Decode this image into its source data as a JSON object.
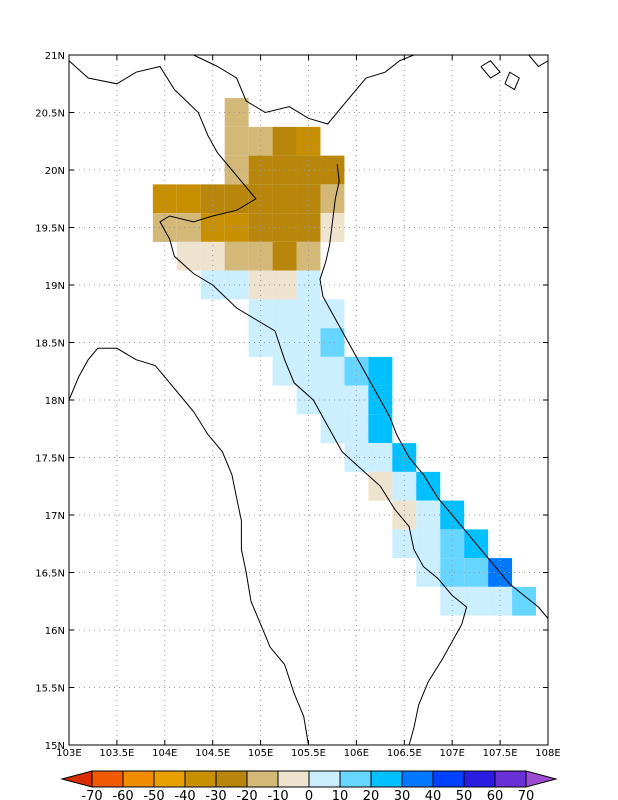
{
  "map": {
    "lon_range": [
      103,
      108
    ],
    "lat_range": [
      15,
      21
    ],
    "lon_labels": [
      "103E",
      "103.5E",
      "104E",
      "104.5E",
      "105E",
      "105.5E",
      "106E",
      "106.5E",
      "107E",
      "107.5E",
      "108E"
    ],
    "lat_labels": [
      "21N",
      "20.5N",
      "20N",
      "19.5N",
      "19N",
      "18.5N",
      "18N",
      "17.5N",
      "17N",
      "16.5N",
      "16N",
      "15.5N",
      "15N"
    ],
    "grid": "dotted",
    "cell_size_deg": 0.25,
    "cells": [
      {
        "lon": 104.75,
        "lat": 20.5,
        "bin": 6
      },
      {
        "lon": 104.75,
        "lat": 20.25,
        "bin": 6
      },
      {
        "lon": 105.0,
        "lat": 20.25,
        "bin": 6
      },
      {
        "lon": 105.25,
        "lat": 20.25,
        "bin": 5
      },
      {
        "lon": 105.5,
        "lat": 20.25,
        "bin": 4
      },
      {
        "lon": 104.75,
        "lat": 20.0,
        "bin": 6
      },
      {
        "lon": 105.0,
        "lat": 20.0,
        "bin": 5
      },
      {
        "lon": 105.25,
        "lat": 20.0,
        "bin": 5
      },
      {
        "lon": 105.5,
        "lat": 20.0,
        "bin": 5
      },
      {
        "lon": 105.75,
        "lat": 20.0,
        "bin": 5
      },
      {
        "lon": 104.0,
        "lat": 19.75,
        "bin": 4
      },
      {
        "lon": 104.25,
        "lat": 19.75,
        "bin": 4
      },
      {
        "lon": 104.5,
        "lat": 19.75,
        "bin": 5
      },
      {
        "lon": 104.75,
        "lat": 19.75,
        "bin": 5
      },
      {
        "lon": 105.0,
        "lat": 19.75,
        "bin": 5
      },
      {
        "lon": 105.25,
        "lat": 19.75,
        "bin": 5
      },
      {
        "lon": 105.5,
        "lat": 19.75,
        "bin": 5
      },
      {
        "lon": 105.75,
        "lat": 19.75,
        "bin": 6
      },
      {
        "lon": 104.0,
        "lat": 19.5,
        "bin": 6
      },
      {
        "lon": 104.25,
        "lat": 19.5,
        "bin": 6
      },
      {
        "lon": 104.5,
        "lat": 19.5,
        "bin": 4
      },
      {
        "lon": 104.75,
        "lat": 19.5,
        "bin": 4
      },
      {
        "lon": 105.0,
        "lat": 19.5,
        "bin": 5
      },
      {
        "lon": 105.25,
        "lat": 19.5,
        "bin": 5
      },
      {
        "lon": 105.5,
        "lat": 19.5,
        "bin": 5
      },
      {
        "lon": 105.75,
        "lat": 19.5,
        "bin": 7
      },
      {
        "lon": 104.25,
        "lat": 19.25,
        "bin": 7
      },
      {
        "lon": 104.5,
        "lat": 19.25,
        "bin": 7
      },
      {
        "lon": 104.75,
        "lat": 19.25,
        "bin": 6
      },
      {
        "lon": 105.0,
        "lat": 19.25,
        "bin": 6
      },
      {
        "lon": 105.25,
        "lat": 19.25,
        "bin": 5
      },
      {
        "lon": 105.5,
        "lat": 19.25,
        "bin": 6
      },
      {
        "lon": 104.5,
        "lat": 19.0,
        "bin": 8
      },
      {
        "lon": 104.75,
        "lat": 19.0,
        "bin": 8
      },
      {
        "lon": 105.0,
        "lat": 19.0,
        "bin": 7
      },
      {
        "lon": 105.25,
        "lat": 19.0,
        "bin": 7
      },
      {
        "lon": 105.5,
        "lat": 19.0,
        "bin": 8
      },
      {
        "lon": 105.0,
        "lat": 18.75,
        "bin": 8
      },
      {
        "lon": 105.25,
        "lat": 18.75,
        "bin": 8
      },
      {
        "lon": 105.5,
        "lat": 18.75,
        "bin": 8
      },
      {
        "lon": 105.75,
        "lat": 18.75,
        "bin": 8
      },
      {
        "lon": 105.0,
        "lat": 18.5,
        "bin": 8
      },
      {
        "lon": 105.25,
        "lat": 18.5,
        "bin": 8
      },
      {
        "lon": 105.5,
        "lat": 18.5,
        "bin": 8
      },
      {
        "lon": 105.75,
        "lat": 18.5,
        "bin": 9
      },
      {
        "lon": 105.25,
        "lat": 18.25,
        "bin": 8
      },
      {
        "lon": 105.5,
        "lat": 18.25,
        "bin": 8
      },
      {
        "lon": 105.75,
        "lat": 18.25,
        "bin": 8
      },
      {
        "lon": 106.0,
        "lat": 18.25,
        "bin": 9
      },
      {
        "lon": 106.25,
        "lat": 18.25,
        "bin": 10
      },
      {
        "lon": 105.5,
        "lat": 18.0,
        "bin": 8
      },
      {
        "lon": 105.75,
        "lat": 18.0,
        "bin": 8
      },
      {
        "lon": 106.0,
        "lat": 18.0,
        "bin": 8
      },
      {
        "lon": 106.25,
        "lat": 18.0,
        "bin": 10
      },
      {
        "lon": 105.75,
        "lat": 17.75,
        "bin": 8
      },
      {
        "lon": 106.0,
        "lat": 17.75,
        "bin": 8
      },
      {
        "lon": 106.25,
        "lat": 17.75,
        "bin": 10
      },
      {
        "lon": 106.0,
        "lat": 17.5,
        "bin": 8
      },
      {
        "lon": 106.25,
        "lat": 17.5,
        "bin": 8
      },
      {
        "lon": 106.5,
        "lat": 17.5,
        "bin": 10
      },
      {
        "lon": 106.25,
        "lat": 17.25,
        "bin": 7
      },
      {
        "lon": 106.5,
        "lat": 17.25,
        "bin": 8
      },
      {
        "lon": 106.75,
        "lat": 17.25,
        "bin": 10
      },
      {
        "lon": 106.5,
        "lat": 17.0,
        "bin": 7
      },
      {
        "lon": 106.75,
        "lat": 17.0,
        "bin": 8
      },
      {
        "lon": 107.0,
        "lat": 17.0,
        "bin": 10
      },
      {
        "lon": 106.5,
        "lat": 16.75,
        "bin": 8
      },
      {
        "lon": 106.75,
        "lat": 16.75,
        "bin": 8
      },
      {
        "lon": 107.0,
        "lat": 16.75,
        "bin": 9
      },
      {
        "lon": 107.25,
        "lat": 16.75,
        "bin": 10
      },
      {
        "lon": 106.75,
        "lat": 16.5,
        "bin": 8
      },
      {
        "lon": 107.0,
        "lat": 16.5,
        "bin": 9
      },
      {
        "lon": 107.25,
        "lat": 16.5,
        "bin": 9
      },
      {
        "lon": 107.5,
        "lat": 16.5,
        "bin": 11
      },
      {
        "lon": 107.0,
        "lat": 16.25,
        "bin": 8
      },
      {
        "lon": 107.25,
        "lat": 16.25,
        "bin": 8
      },
      {
        "lon": 107.5,
        "lat": 16.25,
        "bin": 8
      },
      {
        "lon": 107.75,
        "lat": 16.25,
        "bin": 9
      }
    ],
    "coastline": [
      [
        104.3,
        21.0
      ],
      [
        104.55,
        20.9
      ],
      [
        104.75,
        20.8
      ],
      [
        104.85,
        20.6
      ],
      [
        105.05,
        20.5
      ],
      [
        105.3,
        20.55
      ],
      [
        105.5,
        20.45
      ],
      [
        105.7,
        20.4
      ],
      [
        105.85,
        20.55
      ],
      [
        106.1,
        20.8
      ],
      [
        106.3,
        20.85
      ],
      [
        106.45,
        20.95
      ],
      [
        106.6,
        21.0
      ]
    ],
    "coast_main": [
      [
        105.8,
        20.05
      ],
      [
        105.82,
        19.9
      ],
      [
        105.78,
        19.75
      ],
      [
        105.75,
        19.55
      ],
      [
        105.72,
        19.35
      ],
      [
        105.68,
        19.2
      ],
      [
        105.62,
        19.05
      ],
      [
        105.65,
        18.9
      ],
      [
        105.75,
        18.75
      ],
      [
        105.85,
        18.6
      ],
      [
        105.95,
        18.45
      ],
      [
        106.05,
        18.3
      ],
      [
        106.15,
        18.15
      ],
      [
        106.25,
        18.0
      ],
      [
        106.35,
        17.85
      ],
      [
        106.42,
        17.7
      ],
      [
        106.55,
        17.5
      ],
      [
        106.7,
        17.35
      ],
      [
        106.85,
        17.15
      ],
      [
        107.0,
        17.0
      ],
      [
        107.15,
        16.85
      ],
      [
        107.3,
        16.7
      ],
      [
        107.45,
        16.55
      ],
      [
        107.6,
        16.4
      ],
      [
        107.75,
        16.3
      ],
      [
        107.9,
        16.2
      ],
      [
        108.0,
        16.1
      ]
    ],
    "border_laos": [
      [
        103.0,
        20.95
      ],
      [
        103.2,
        20.8
      ],
      [
        103.5,
        20.75
      ],
      [
        103.7,
        20.85
      ],
      [
        103.95,
        20.9
      ],
      [
        104.1,
        20.7
      ],
      [
        104.35,
        20.5
      ],
      [
        104.45,
        20.3
      ],
      [
        104.55,
        20.15
      ],
      [
        104.7,
        20.0
      ],
      [
        104.85,
        19.85
      ],
      [
        104.95,
        19.75
      ],
      [
        104.75,
        19.65
      ],
      [
        104.5,
        19.6
      ],
      [
        104.3,
        19.55
      ],
      [
        104.05,
        19.6
      ],
      [
        103.95,
        19.55
      ],
      [
        104.05,
        19.4
      ],
      [
        104.1,
        19.25
      ],
      [
        104.3,
        19.1
      ],
      [
        104.5,
        19.0
      ],
      [
        104.75,
        18.8
      ],
      [
        104.95,
        18.7
      ],
      [
        105.15,
        18.6
      ],
      [
        105.25,
        18.35
      ],
      [
        105.35,
        18.15
      ],
      [
        105.55,
        18.0
      ],
      [
        105.65,
        17.85
      ],
      [
        105.75,
        17.7
      ],
      [
        105.85,
        17.55
      ],
      [
        106.05,
        17.4
      ],
      [
        106.25,
        17.25
      ],
      [
        106.4,
        17.05
      ],
      [
        106.55,
        16.9
      ],
      [
        106.6,
        16.7
      ],
      [
        106.7,
        16.55
      ],
      [
        106.85,
        16.45
      ],
      [
        107.0,
        16.3
      ],
      [
        107.15,
        16.2
      ],
      [
        107.1,
        16.05
      ],
      [
        107.0,
        15.9
      ],
      [
        106.9,
        15.75
      ],
      [
        106.75,
        15.55
      ],
      [
        106.65,
        15.35
      ],
      [
        106.6,
        15.15
      ],
      [
        106.55,
        15.0
      ]
    ],
    "border_thai": [
      [
        103.0,
        18.0
      ],
      [
        103.1,
        18.2
      ],
      [
        103.2,
        18.35
      ],
      [
        103.3,
        18.45
      ],
      [
        103.5,
        18.45
      ],
      [
        103.7,
        18.35
      ],
      [
        103.9,
        18.3
      ],
      [
        104.1,
        18.1
      ],
      [
        104.3,
        17.9
      ],
      [
        104.45,
        17.7
      ],
      [
        104.6,
        17.55
      ],
      [
        104.7,
        17.35
      ],
      [
        104.75,
        17.15
      ],
      [
        104.8,
        16.95
      ],
      [
        104.8,
        16.7
      ],
      [
        104.85,
        16.5
      ],
      [
        104.9,
        16.25
      ],
      [
        105.0,
        16.05
      ],
      [
        105.1,
        15.85
      ],
      [
        105.25,
        15.7
      ],
      [
        105.35,
        15.45
      ],
      [
        105.45,
        15.25
      ],
      [
        105.5,
        15.0
      ]
    ],
    "islands": [
      [
        [
          107.3,
          20.9
        ],
        [
          107.4,
          20.8
        ],
        [
          107.5,
          20.85
        ],
        [
          107.4,
          20.95
        ],
        [
          107.3,
          20.9
        ]
      ],
      [
        [
          107.55,
          20.75
        ],
        [
          107.65,
          20.7
        ],
        [
          107.7,
          20.8
        ],
        [
          107.6,
          20.85
        ],
        [
          107.55,
          20.75
        ]
      ],
      [
        [
          107.8,
          21.0
        ],
        [
          107.9,
          20.9
        ],
        [
          108.0,
          20.95
        ]
      ]
    ]
  },
  "colorbar": {
    "levels": [
      "-70",
      "-60",
      "-50",
      "-40",
      "-30",
      "-20",
      "-10",
      "0",
      "10",
      "20",
      "30",
      "40",
      "50",
      "60",
      "70"
    ],
    "colors": [
      "#d82b00",
      "#f05a00",
      "#f08c00",
      "#e8a000",
      "#c89000",
      "#b8860b",
      "#d4b878",
      "#ede3cf",
      "#ccefff",
      "#66d5ff",
      "#00c0ff",
      "#0078ff",
      "#0040ff",
      "#2a1ce0",
      "#6a30d8",
      "#9b4bd0"
    ]
  }
}
